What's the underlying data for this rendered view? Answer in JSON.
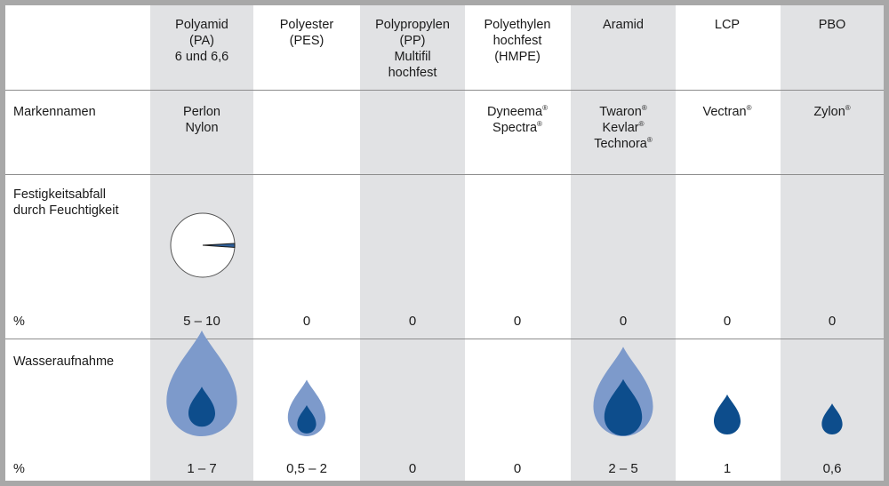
{
  "columns": [
    {
      "lines": [
        "Polyamid",
        "(PA)",
        "6 und 6,6"
      ]
    },
    {
      "lines": [
        "Polyester",
        "(PES)"
      ]
    },
    {
      "lines": [
        "Polypropylen",
        "(PP)",
        "Multifil",
        "hochfest"
      ]
    },
    {
      "lines": [
        "Polyethylen",
        "hochfest",
        "(HMPE)"
      ]
    },
    {
      "lines": [
        "Aramid"
      ]
    },
    {
      "lines": [
        "LCP"
      ]
    },
    {
      "lines": [
        "PBO"
      ]
    }
  ],
  "rows": {
    "brand": {
      "label_lines": [
        "Markennamen"
      ],
      "reg_mark": "®",
      "cells": [
        [
          "Perlon",
          "Nylon"
        ],
        [],
        [],
        [
          "Dyneema",
          "Spectra"
        ],
        [
          "Twaron",
          "Kevlar",
          "Technora"
        ],
        [
          "Vectran"
        ],
        [
          "Zylon"
        ]
      ],
      "registered": [
        false,
        false,
        false,
        true,
        true,
        true,
        true
      ]
    },
    "strength": {
      "label_lines": [
        "Festigkeitsabfall",
        "durch Feuchtigkeit"
      ],
      "unit": "%",
      "values": [
        "5 – 10",
        "0",
        "0",
        "0",
        "0",
        "0",
        "0"
      ],
      "pie_fraction": 0.02
    },
    "water": {
      "label_lines": [
        "Wasseraufnahme"
      ],
      "unit": "%",
      "values": [
        "1 – 7",
        "0,5 – 2",
        "0",
        "0",
        "2 – 5",
        "1",
        "0,6"
      ],
      "drop_outer": [
        7,
        2,
        0,
        0,
        5,
        0,
        0
      ],
      "drop_inner": [
        1,
        0.5,
        0,
        0,
        2,
        1,
        0.6
      ]
    }
  },
  "colors": {
    "shade": "#e1e2e4",
    "drop_outer": "#7d9acb",
    "drop_inner": "#0d4d8c",
    "pie_slice": "#2e5f9a",
    "rule": "#8d8d8d"
  }
}
